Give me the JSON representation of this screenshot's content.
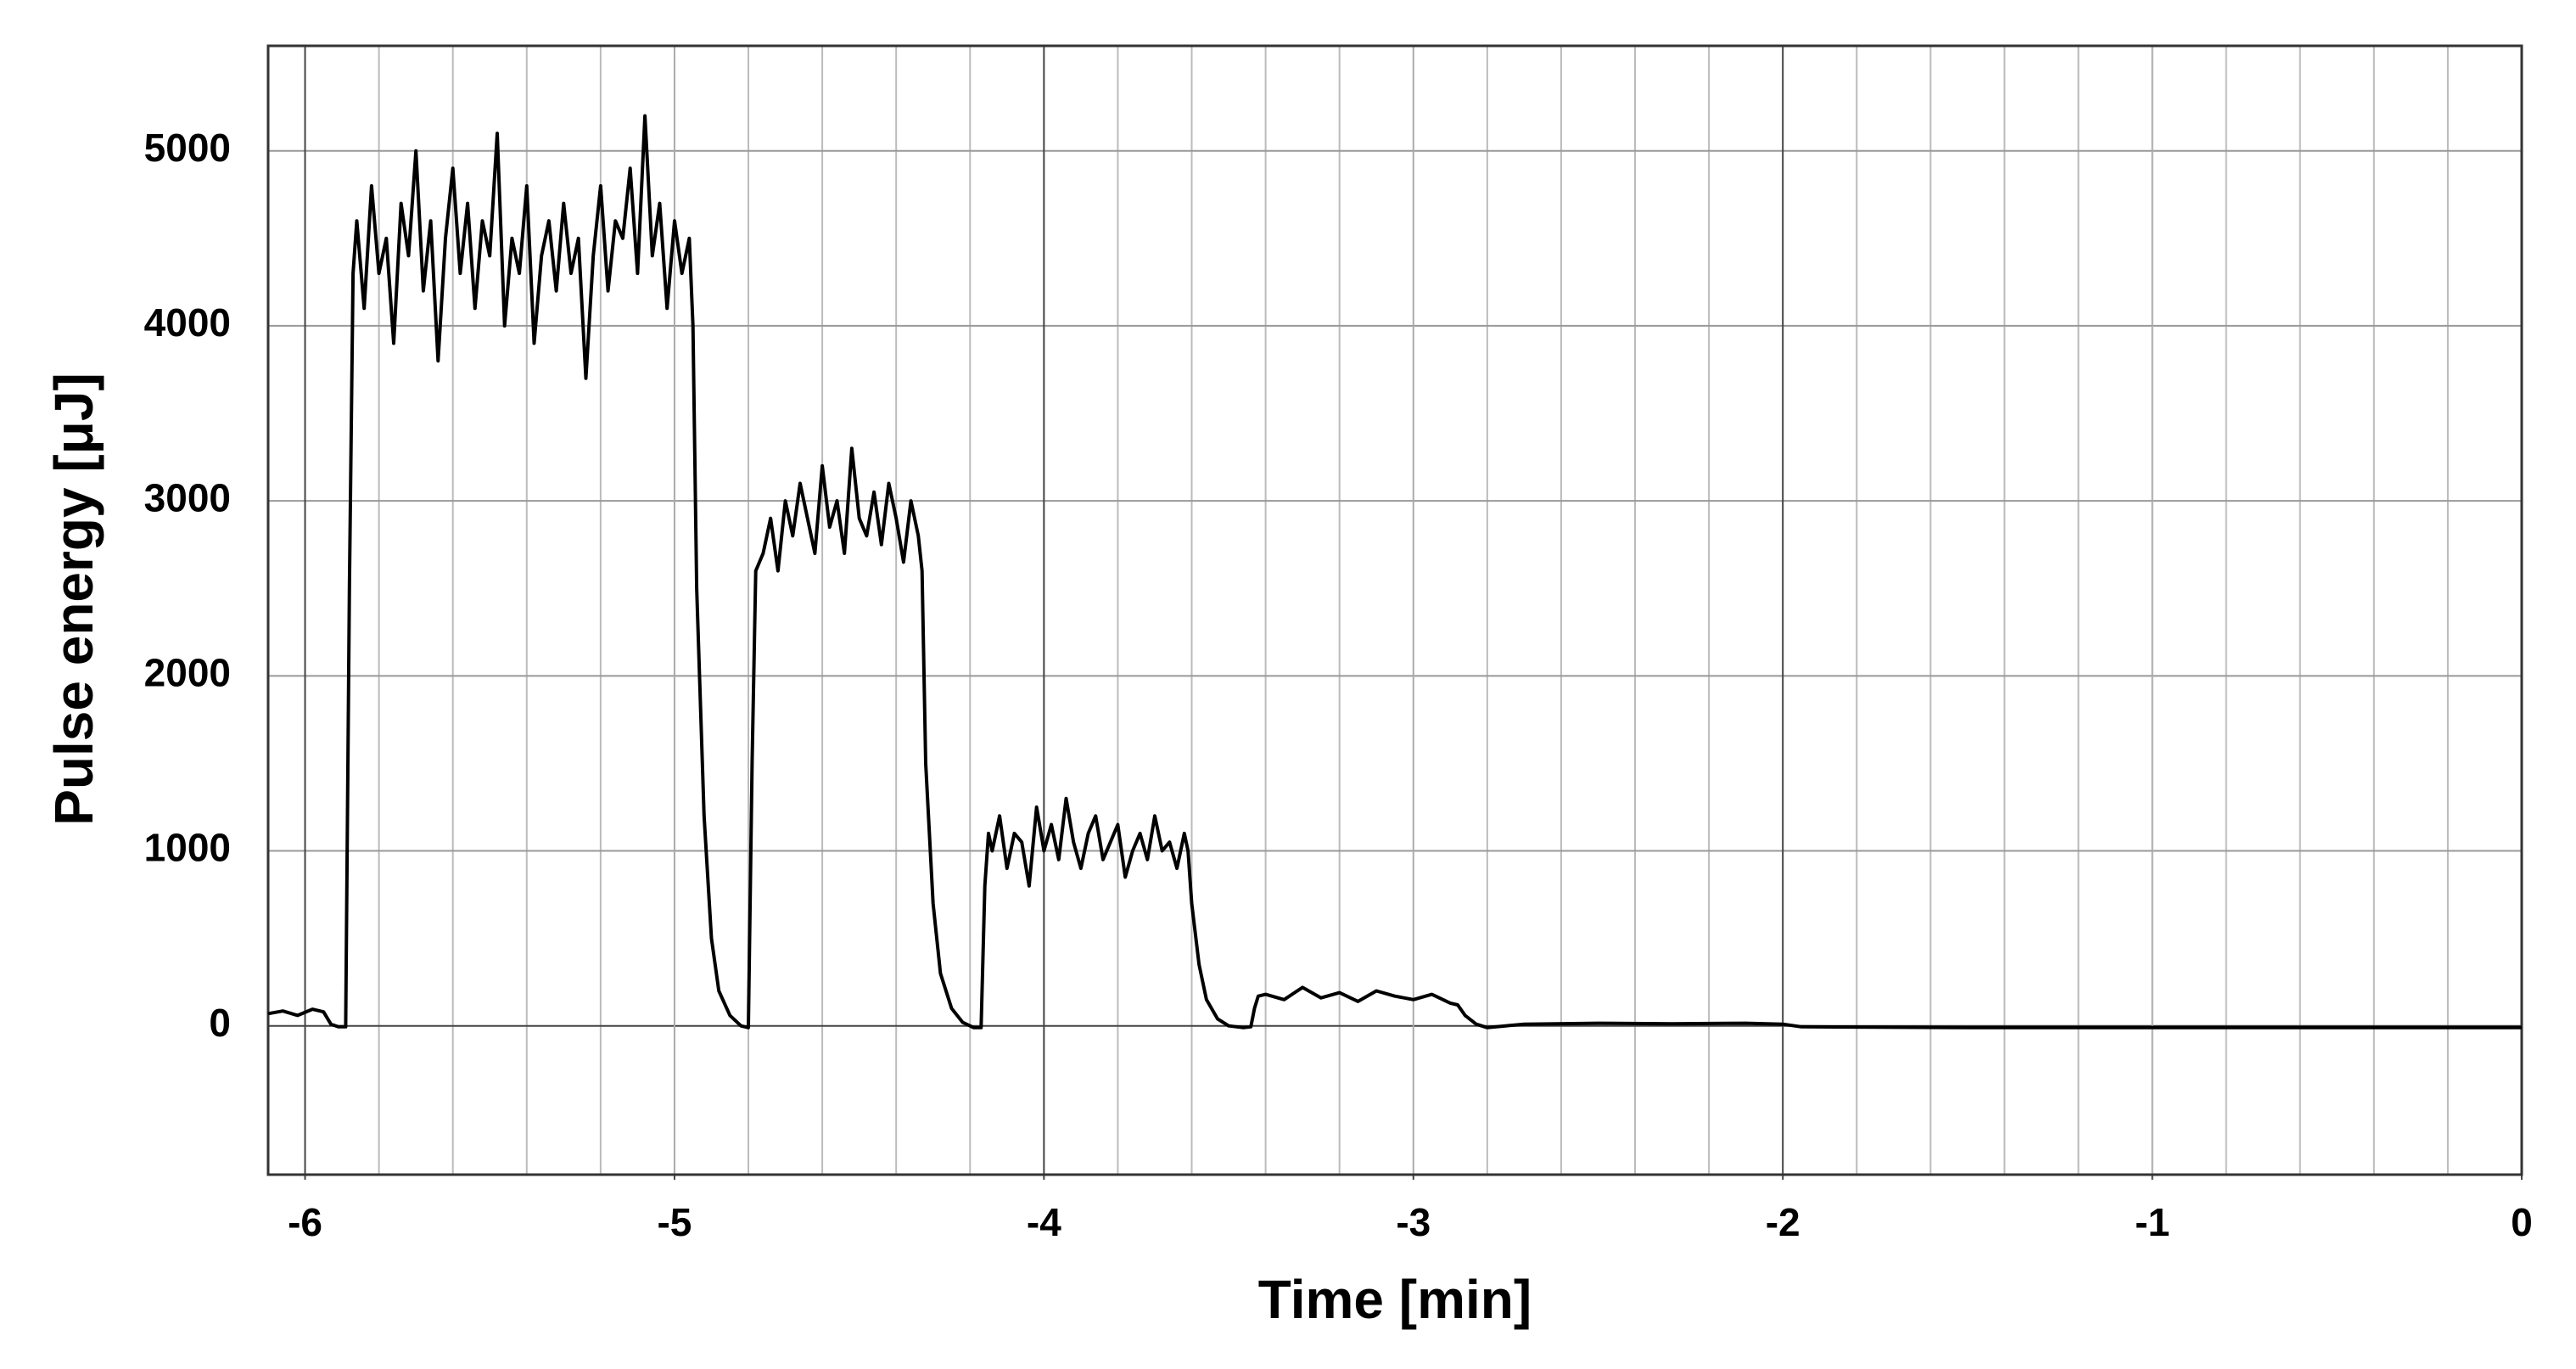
{
  "chart_data": {
    "type": "line",
    "x_label": "Time [min]",
    "y_label": "Pulse energy [μJ]",
    "xlim": [
      -6.1,
      0
    ],
    "ylim": [
      -850,
      5600
    ],
    "xticks": [
      -6,
      -5,
      -4,
      -3,
      -2,
      -1,
      0
    ],
    "yticks": [
      0,
      1000,
      2000,
      3000,
      4000,
      5000
    ],
    "grid": true,
    "x": [
      -6.1,
      -6.06,
      -6.02,
      -5.98,
      -5.95,
      -5.93,
      -5.91,
      -5.89,
      -5.88,
      -5.87,
      -5.86,
      -5.84,
      -5.82,
      -5.8,
      -5.78,
      -5.76,
      -5.74,
      -5.72,
      -5.7,
      -5.68,
      -5.66,
      -5.64,
      -5.62,
      -5.6,
      -5.58,
      -5.56,
      -5.54,
      -5.52,
      -5.5,
      -5.48,
      -5.46,
      -5.44,
      -5.42,
      -5.4,
      -5.38,
      -5.36,
      -5.34,
      -5.32,
      -5.3,
      -5.28,
      -5.26,
      -5.24,
      -5.22,
      -5.2,
      -5.18,
      -5.16,
      -5.14,
      -5.12,
      -5.1,
      -5.08,
      -5.06,
      -5.04,
      -5.02,
      -5.0,
      -4.98,
      -4.96,
      -4.95,
      -4.94,
      -4.92,
      -4.9,
      -4.88,
      -4.85,
      -4.82,
      -4.8,
      -4.79,
      -4.78,
      -4.76,
      -4.74,
      -4.72,
      -4.7,
      -4.68,
      -4.66,
      -4.64,
      -4.62,
      -4.6,
      -4.58,
      -4.56,
      -4.54,
      -4.52,
      -4.5,
      -4.48,
      -4.46,
      -4.44,
      -4.42,
      -4.4,
      -4.38,
      -4.36,
      -4.34,
      -4.33,
      -4.32,
      -4.3,
      -4.28,
      -4.25,
      -4.22,
      -4.19,
      -4.17,
      -4.16,
      -4.15,
      -4.14,
      -4.12,
      -4.1,
      -4.08,
      -4.06,
      -4.04,
      -4.02,
      -4.0,
      -3.98,
      -3.96,
      -3.94,
      -3.92,
      -3.9,
      -3.88,
      -3.86,
      -3.84,
      -3.82,
      -3.8,
      -3.78,
      -3.76,
      -3.74,
      -3.72,
      -3.7,
      -3.68,
      -3.66,
      -3.64,
      -3.62,
      -3.61,
      -3.6,
      -3.58,
      -3.56,
      -3.53,
      -3.5,
      -3.46,
      -3.44,
      -3.43,
      -3.42,
      -3.4,
      -3.35,
      -3.3,
      -3.25,
      -3.2,
      -3.15,
      -3.1,
      -3.05,
      -3.0,
      -2.95,
      -2.9,
      -2.88,
      -2.86,
      -2.83,
      -2.8,
      -2.75,
      -2.7,
      -2.5,
      -2.3,
      -2.1,
      -2.0,
      -1.95,
      -1.5,
      -1.0,
      -0.5,
      0
    ],
    "series": [
      {
        "name": "Pulse energy",
        "color": "#000000",
        "values": [
          70,
          85,
          60,
          95,
          80,
          10,
          -5,
          -5,
          2500,
          4300,
          4600,
          4100,
          4800,
          4300,
          4500,
          3900,
          4700,
          4400,
          5000,
          4200,
          4600,
          3800,
          4500,
          4900,
          4300,
          4700,
          4100,
          4600,
          4400,
          5100,
          4000,
          4500,
          4300,
          4800,
          3900,
          4400,
          4600,
          4200,
          4700,
          4300,
          4500,
          3700,
          4400,
          4800,
          4200,
          4600,
          4500,
          4900,
          4300,
          5200,
          4400,
          4700,
          4100,
          4600,
          4300,
          4500,
          4000,
          2500,
          1200,
          500,
          200,
          60,
          0,
          -10,
          1500,
          2600,
          2700,
          2900,
          2600,
          3000,
          2800,
          3100,
          2900,
          2700,
          3200,
          2850,
          3000,
          2700,
          3300,
          2900,
          2800,
          3050,
          2750,
          3100,
          2900,
          2650,
          3000,
          2800,
          2600,
          1500,
          700,
          300,
          100,
          20,
          -10,
          -10,
          800,
          1100,
          1000,
          1200,
          900,
          1100,
          1050,
          800,
          1250,
          1000,
          1150,
          950,
          1300,
          1050,
          900,
          1100,
          1200,
          950,
          1050,
          1150,
          850,
          1000,
          1100,
          950,
          1200,
          1000,
          1050,
          900,
          1100,
          1000,
          700,
          350,
          150,
          40,
          0,
          -10,
          -5,
          100,
          170,
          180,
          150,
          220,
          160,
          190,
          140,
          200,
          170,
          150,
          180,
          130,
          120,
          60,
          10,
          -10,
          0,
          10,
          15,
          12,
          15,
          10,
          -5,
          -10,
          -10,
          -10,
          -10
        ]
      }
    ]
  }
}
